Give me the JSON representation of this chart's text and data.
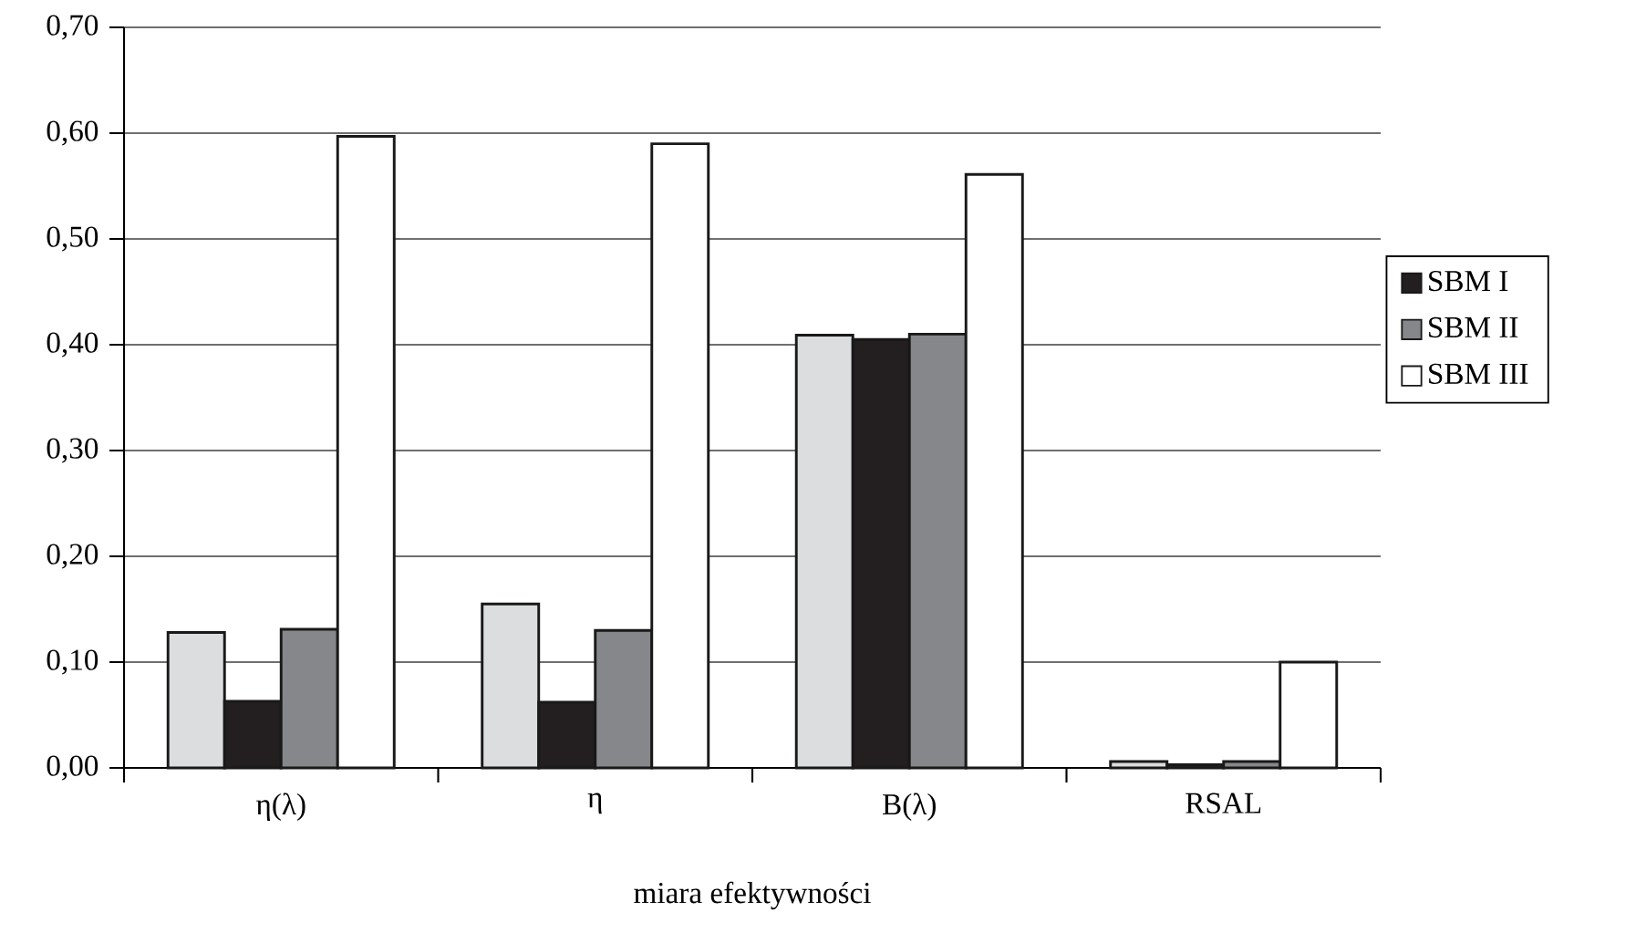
{
  "chart_data": {
    "type": "bar",
    "xlabel": "miara efektywności",
    "categories": [
      "η(λ)",
      "η",
      "B(λ)",
      "RSAL"
    ],
    "series": [
      {
        "color": "#dcdddf",
        "values": [
          0.128,
          0.155,
          0.409,
          0.006
        ]
      },
      {
        "name": "SBM I",
        "color": "#231f20",
        "values": [
          0.063,
          0.062,
          0.405,
          0.003
        ]
      },
      {
        "name": "SBM II",
        "color": "#86878b",
        "values": [
          0.131,
          0.13,
          0.41,
          0.006
        ]
      },
      {
        "name": "SBM III",
        "color": "#ffffff",
        "values": [
          0.597,
          0.59,
          0.561,
          0.1
        ]
      }
    ],
    "ylim": [
      0,
      0.7
    ],
    "yticks": [
      {
        "value": 0,
        "label": "0,00"
      },
      {
        "value": 0.1,
        "label": "0,10"
      },
      {
        "value": 0.2,
        "label": "0,20"
      },
      {
        "value": 0.3,
        "label": "0,30"
      },
      {
        "value": 0.4,
        "label": "0,40"
      },
      {
        "value": 0.5,
        "label": "0,50"
      },
      {
        "value": 0.6,
        "label": "0,60"
      },
      {
        "value": 0.7,
        "label": "0,70"
      }
    ],
    "grid": "y",
    "legend": "right"
  }
}
